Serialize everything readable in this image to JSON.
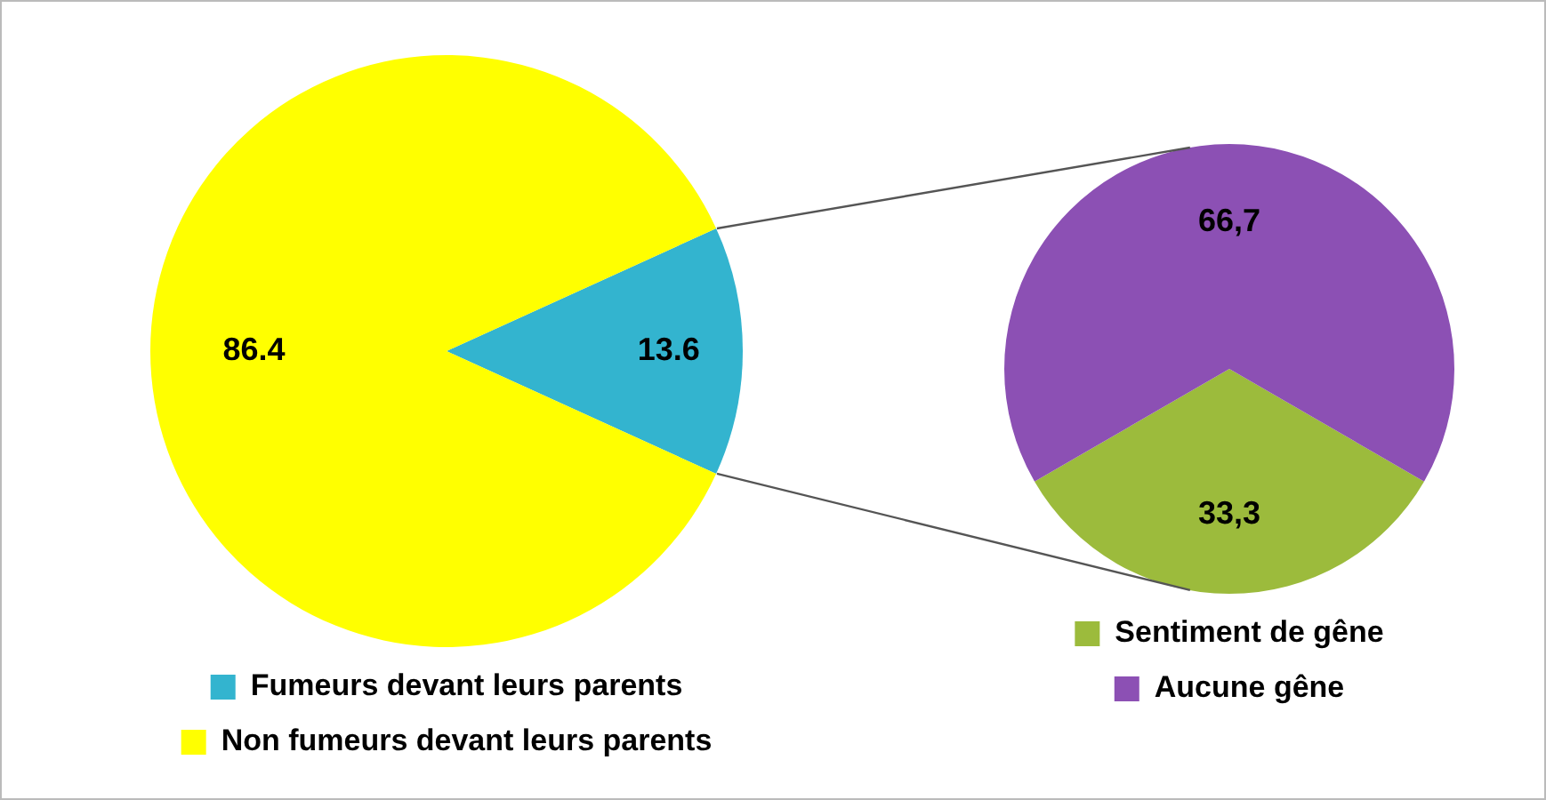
{
  "chart_data": [
    {
      "type": "pie",
      "categories": [
        "Fumeurs devant leurs parents",
        "Non fumeurs devant leurs parents"
      ],
      "values": [
        13.6,
        86.4
      ],
      "colors": [
        "#33b4cf",
        "#ffff00"
      ],
      "value_labels": [
        "13.6",
        "86.4"
      ],
      "legend": "bottom"
    },
    {
      "type": "pie",
      "categories": [
        "Sentiment de gêne",
        "Aucune gêne"
      ],
      "values": [
        33.3,
        66.7
      ],
      "colors": [
        "#9cbb3c",
        "#8c50b4"
      ],
      "value_labels": [
        "33,3",
        "66,7"
      ],
      "legend": "bottom"
    }
  ]
}
